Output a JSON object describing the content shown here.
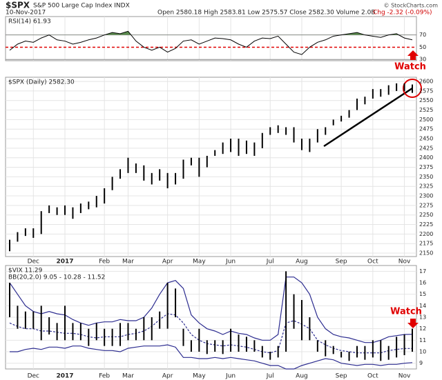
{
  "header": {
    "symbol": "$SPX",
    "name": "S&P 500 Large Cap Index INDX",
    "date": "10-Nov-2017",
    "quote": "Open 2580.18  High 2583.81  Low 2575.57  Close 2582.30  Volume 2.0B",
    "change": "Chg -2.32 (-0.09%)",
    "credit": "© StockCharts.com"
  },
  "chart_data": [
    {
      "type": "line",
      "label": "RSI(14) 61.93",
      "color": "#000000",
      "fill_color": "#5b8c4e",
      "fill_above": 70,
      "ref_line": 50,
      "ref_color": "#e00000",
      "values": [
        45,
        55,
        60,
        58,
        65,
        70,
        62,
        60,
        55,
        58,
        62,
        65,
        70,
        74,
        72,
        76,
        60,
        50,
        45,
        50,
        42,
        48,
        60,
        62,
        55,
        60,
        65,
        64,
        62,
        55,
        50,
        60,
        65,
        64,
        68,
        55,
        42,
        38,
        50,
        58,
        62,
        68,
        70,
        72,
        74,
        70,
        68,
        66,
        70,
        72,
        65,
        62
      ],
      "ylim": [
        28,
        100
      ],
      "yticks": [
        30,
        50,
        70
      ],
      "annotation": "Watch"
    },
    {
      "type": "hilo",
      "label": "$SPX (Daily) 2582.30",
      "color": "#000000",
      "high": [
        2185,
        2205,
        2215,
        2215,
        2260,
        2275,
        2270,
        2275,
        2270,
        2280,
        2285,
        2300,
        2320,
        2350,
        2370,
        2400,
        2385,
        2380,
        2360,
        2370,
        2360,
        2360,
        2395,
        2400,
        2400,
        2405,
        2420,
        2440,
        2450,
        2450,
        2445,
        2440,
        2465,
        2480,
        2485,
        2480,
        2480,
        2450,
        2450,
        2475,
        2480,
        2500,
        2510,
        2525,
        2555,
        2560,
        2580,
        2580,
        2590,
        2595,
        2595,
        2592
      ],
      "low": [
        2155,
        2180,
        2195,
        2190,
        2200,
        2255,
        2250,
        2250,
        2240,
        2255,
        2265,
        2270,
        2280,
        2315,
        2345,
        2360,
        2360,
        2340,
        2330,
        2340,
        2320,
        2330,
        2345,
        2380,
        2350,
        2375,
        2405,
        2410,
        2415,
        2405,
        2410,
        2405,
        2425,
        2460,
        2465,
        2460,
        2440,
        2420,
        2415,
        2440,
        2460,
        2485,
        2495,
        2505,
        2525,
        2540,
        2555,
        2560,
        2565,
        2575,
        2575,
        2570
      ],
      "ylim": [
        2141,
        2611
      ],
      "yticks": [
        2150,
        2175,
        2200,
        2225,
        2250,
        2275,
        2300,
        2325,
        2350,
        2375,
        2400,
        2425,
        2450,
        2475,
        2500,
        2525,
        2550,
        2575,
        2600
      ],
      "xticks": [
        {
          "value": 3,
          "label": "Dec"
        },
        {
          "value": 7,
          "label": "2017"
        },
        {
          "value": 12,
          "label": "Feb"
        },
        {
          "value": 15,
          "label": "Mar"
        },
        {
          "value": 20,
          "label": "Apr"
        },
        {
          "value": 24,
          "label": "May"
        },
        {
          "value": 28,
          "label": "Jun"
        },
        {
          "value": 33,
          "label": "Jul"
        },
        {
          "value": 37,
          "label": "Aug"
        },
        {
          "value": 42,
          "label": "Sep"
        },
        {
          "value": 46,
          "label": "Oct"
        },
        {
          "value": 50,
          "label": "Nov"
        }
      ]
    },
    {
      "type": "hilo",
      "label": "$VIX 11.29",
      "color": "#000000",
      "high": [
        16,
        14,
        13.5,
        13.5,
        14,
        13,
        12.5,
        14,
        12.5,
        12.5,
        12,
        12.5,
        12,
        12,
        12.5,
        12.5,
        12,
        13,
        13,
        13.5,
        16,
        15.5,
        12,
        11,
        12,
        11,
        11,
        11,
        12,
        11.5,
        11.3,
        11,
        10.5,
        10,
        10.5,
        17,
        15,
        14.5,
        13,
        11,
        11,
        10.5,
        10,
        10,
        10.5,
        10.5,
        11,
        11,
        10.5,
        11.3,
        11.5,
        12
      ],
      "low": [
        13,
        12,
        12,
        12,
        11,
        11.5,
        11,
        11,
        11,
        11,
        10.5,
        11,
        10.5,
        10.5,
        10.5,
        11,
        11,
        11,
        11,
        12,
        12,
        13,
        10.5,
        10,
        10,
        9.8,
        10,
        9.8,
        10,
        10,
        10,
        10,
        9.5,
        9.3,
        9.5,
        10,
        12,
        11,
        11,
        10,
        9.6,
        9.8,
        9.5,
        9.2,
        9.5,
        9.3,
        9.5,
        9.2,
        9.3,
        9.5,
        9.7,
        10
      ],
      "bands": {
        "label": "BB(20,2.0) 9.05 - 10.28 - 11.52",
        "color": "#2b2b8f",
        "upper": [
          16,
          15,
          14,
          13.5,
          13.3,
          13.5,
          13.3,
          13.2,
          12.8,
          12.5,
          12.3,
          12.5,
          12.6,
          12.6,
          12.8,
          12.7,
          12.7,
          13,
          13.8,
          15,
          16,
          16.2,
          15.5,
          13.2,
          12.5,
          12,
          11.8,
          11.5,
          11.8,
          11.6,
          11.5,
          11.2,
          11,
          11,
          11.5,
          16.5,
          16.5,
          16,
          15,
          13,
          12,
          11.5,
          11.3,
          11.2,
          11,
          10.8,
          10.8,
          11,
          11.3,
          11.4,
          11.5,
          11.52
        ],
        "middle": [
          12.5,
          12.2,
          12,
          12,
          11.8,
          11.8,
          11.7,
          11.6,
          11.6,
          11.5,
          11.3,
          11.2,
          11.3,
          11.3,
          11.3,
          11.5,
          11.6,
          11.8,
          12.2,
          12.8,
          13.3,
          13.2,
          12.5,
          11.5,
          11,
          10.7,
          10.6,
          10.5,
          10.6,
          10.5,
          10.4,
          10.2,
          10,
          9.9,
          10.1,
          12.5,
          12.7,
          12.4,
          12,
          11,
          10.6,
          10.3,
          10.1,
          10,
          9.9,
          9.9,
          9.9,
          9.9,
          10.1,
          10.2,
          10.28,
          10.28
        ],
        "lower": [
          10,
          10,
          10.2,
          10.3,
          10.2,
          10.4,
          10.4,
          10.3,
          10.5,
          10.5,
          10.3,
          10.2,
          10.1,
          10.1,
          10,
          10.3,
          10.4,
          10.5,
          10.5,
          10.5,
          10.6,
          10.4,
          9.5,
          9.5,
          9.4,
          9.4,
          9.5,
          9.4,
          9.5,
          9.4,
          9.3,
          9.2,
          9,
          8.8,
          8.8,
          8.5,
          8.5,
          8.8,
          9,
          9.2,
          9.4,
          9.3,
          9,
          8.9,
          8.8,
          8.9,
          8.9,
          8.8,
          8.9,
          8.9,
          9,
          9.05
        ]
      },
      "ylim": [
        8.5,
        17.5
      ],
      "yticks": [
        9,
        10,
        11,
        12,
        13,
        14,
        15,
        16,
        17
      ],
      "annotation": "Watch"
    }
  ]
}
